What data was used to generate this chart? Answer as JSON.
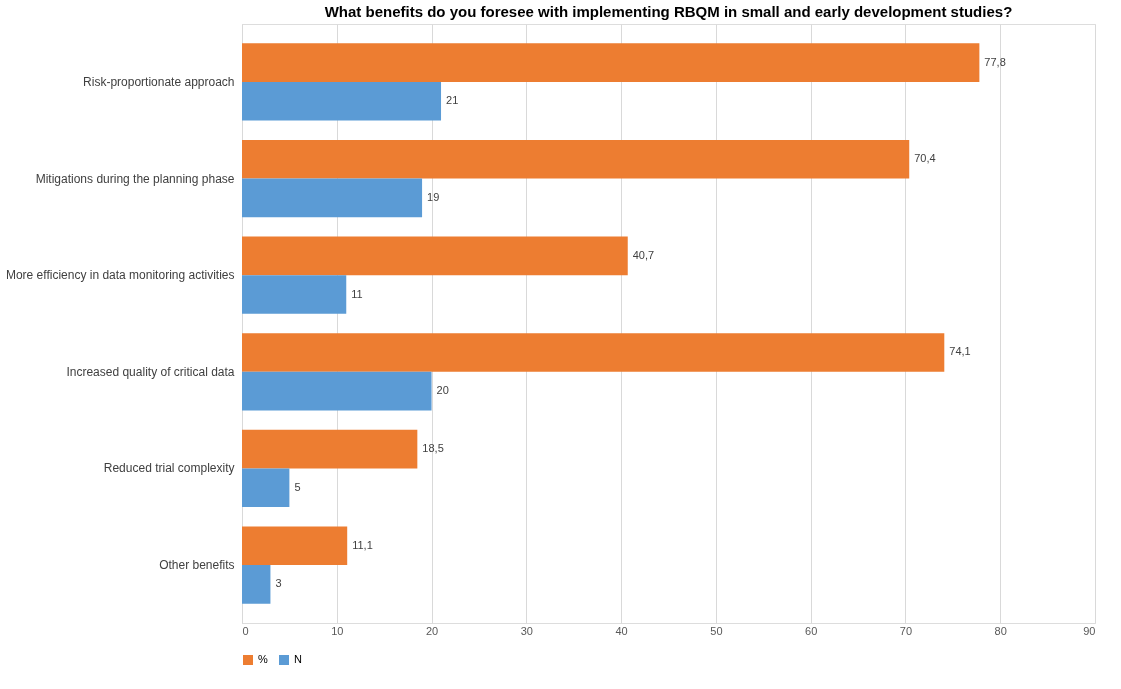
{
  "chart_data": {
    "type": "bar",
    "orientation": "horizontal",
    "title": "What benefits do you foresee with implementing RBQM in small and early development studies?",
    "categories": [
      "Risk-proportionate approach",
      "Mitigations during the planning phase",
      "More efficiency in data monitoring activities",
      "Increased quality of critical data",
      "Reduced trial complexity",
      "Other benefits"
    ],
    "series": [
      {
        "name": "%",
        "color": "#ed7d31",
        "values": [
          77.8,
          70.4,
          40.7,
          74.1,
          18.5,
          11.1
        ],
        "value_labels": [
          "77,8",
          "70,4",
          "40,7",
          "74,1",
          "18,5",
          "11,1"
        ]
      },
      {
        "name": "N",
        "color": "#5b9bd5",
        "values": [
          21,
          19,
          11,
          20,
          5,
          3
        ],
        "value_labels": [
          "21",
          "19",
          "11",
          "20",
          "5",
          "3"
        ]
      }
    ],
    "xlim": [
      0,
      90
    ],
    "xticks": [
      0,
      10,
      20,
      30,
      40,
      50,
      60,
      70,
      80,
      90
    ],
    "grid": "x",
    "legend": "bottom"
  }
}
